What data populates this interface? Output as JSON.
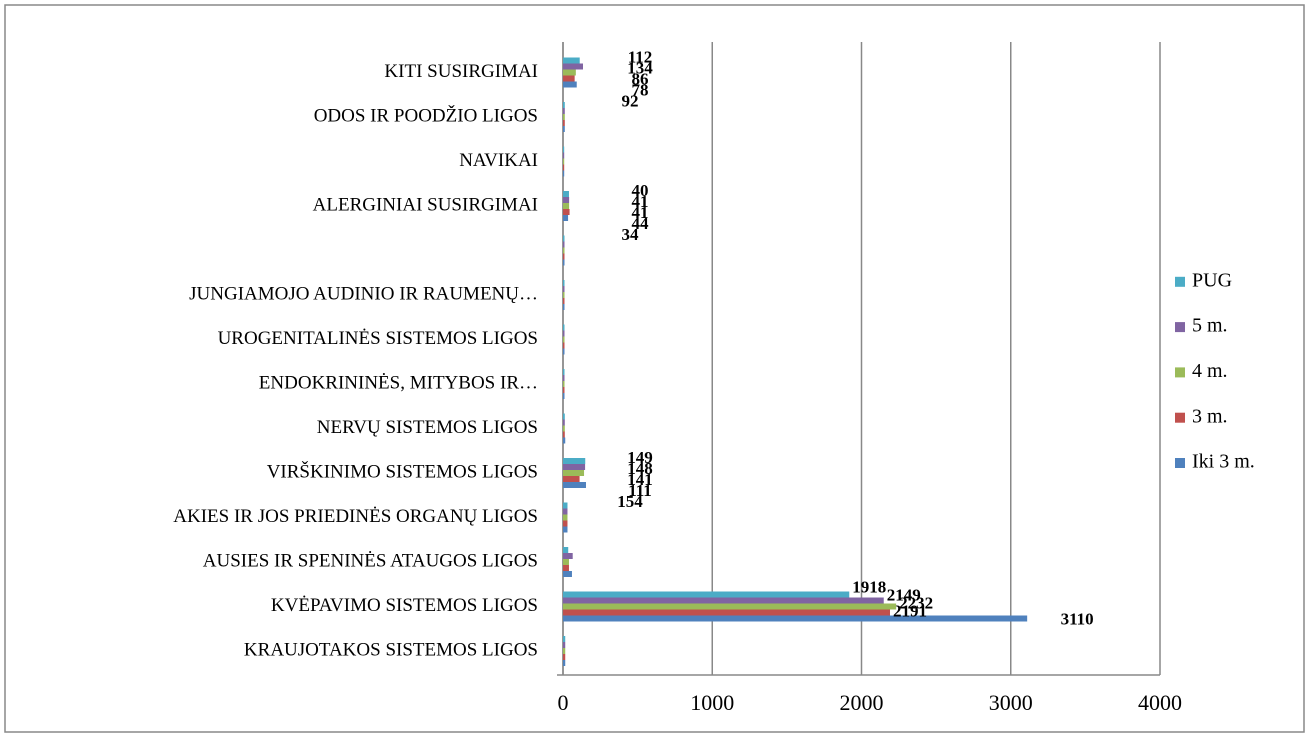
{
  "chart_data": {
    "type": "hbar",
    "categories": [
      "KRAUJOTAKOS SISTEMOS LIGOS",
      "KVĖPAVIMO SISTEMOS LIGOS",
      "AUSIES IR SPENINĖS ATAUGOS LIGOS",
      "AKIES IR JOS PRIEDINĖS ORGANŲ LIGOS",
      "VIRŠKINIMO SISTEMOS LIGOS",
      "NERVŲ SISTEMOS LIGOS",
      "ENDOKRININĖS, MITYBOS IR…",
      "UROGENITALINĖS SISTEMOS LIGOS",
      "JUNGIAMOJO AUDINIO IR RAUMENŲ…",
      null,
      "ALERGINIAI SUSIRGIMAI",
      "NAVIKAI",
      "ODOS IR POODŽIO LIGOS",
      "KITI  SUSIRGIMAI"
    ],
    "series": [
      {
        "name": "Iki 3 m.",
        "color": "#4f81bd",
        "values": [
          15,
          3110,
          60,
          30,
          154,
          15,
          10,
          10,
          10,
          10,
          34,
          8,
          12,
          92
        ],
        "value_labels": [
          null,
          "3110",
          null,
          null,
          "154",
          null,
          null,
          null,
          null,
          null,
          "34",
          null,
          null,
          "92"
        ]
      },
      {
        "name": "3 m.",
        "color": "#c0504d",
        "values": [
          15,
          2191,
          40,
          30,
          111,
          12,
          10,
          10,
          10,
          10,
          44,
          8,
          12,
          78
        ],
        "value_labels": [
          null,
          "2191",
          null,
          null,
          "111",
          null,
          null,
          null,
          null,
          null,
          "44",
          null,
          null,
          "78"
        ]
      },
      {
        "name": "4 m.",
        "color": "#9bbb59",
        "values": [
          15,
          2232,
          40,
          30,
          141,
          12,
          10,
          10,
          10,
          10,
          41,
          8,
          12,
          86
        ],
        "value_labels": [
          null,
          "2232",
          null,
          null,
          "141",
          null,
          null,
          null,
          null,
          null,
          "41",
          null,
          null,
          "86"
        ]
      },
      {
        "name": "5 m.",
        "color": "#8064a2",
        "values": [
          15,
          2149,
          65,
          30,
          148,
          12,
          10,
          10,
          10,
          10,
          41,
          8,
          12,
          134
        ],
        "value_labels": [
          null,
          "2149",
          null,
          null,
          "148",
          null,
          null,
          null,
          null,
          null,
          "41",
          null,
          null,
          "134"
        ]
      },
      {
        "name": "PUG",
        "color": "#4bacc6",
        "values": [
          15,
          1918,
          35,
          30,
          149,
          12,
          10,
          10,
          10,
          10,
          40,
          8,
          12,
          112
        ],
        "value_labels": [
          null,
          "1918",
          null,
          null,
          "149",
          null,
          null,
          null,
          null,
          null,
          "40",
          null,
          null,
          "112"
        ]
      }
    ],
    "xlim": [
      0,
      4000
    ],
    "xticks": [
      0,
      1000,
      2000,
      3000,
      4000
    ],
    "grid": true,
    "legend": "right"
  }
}
